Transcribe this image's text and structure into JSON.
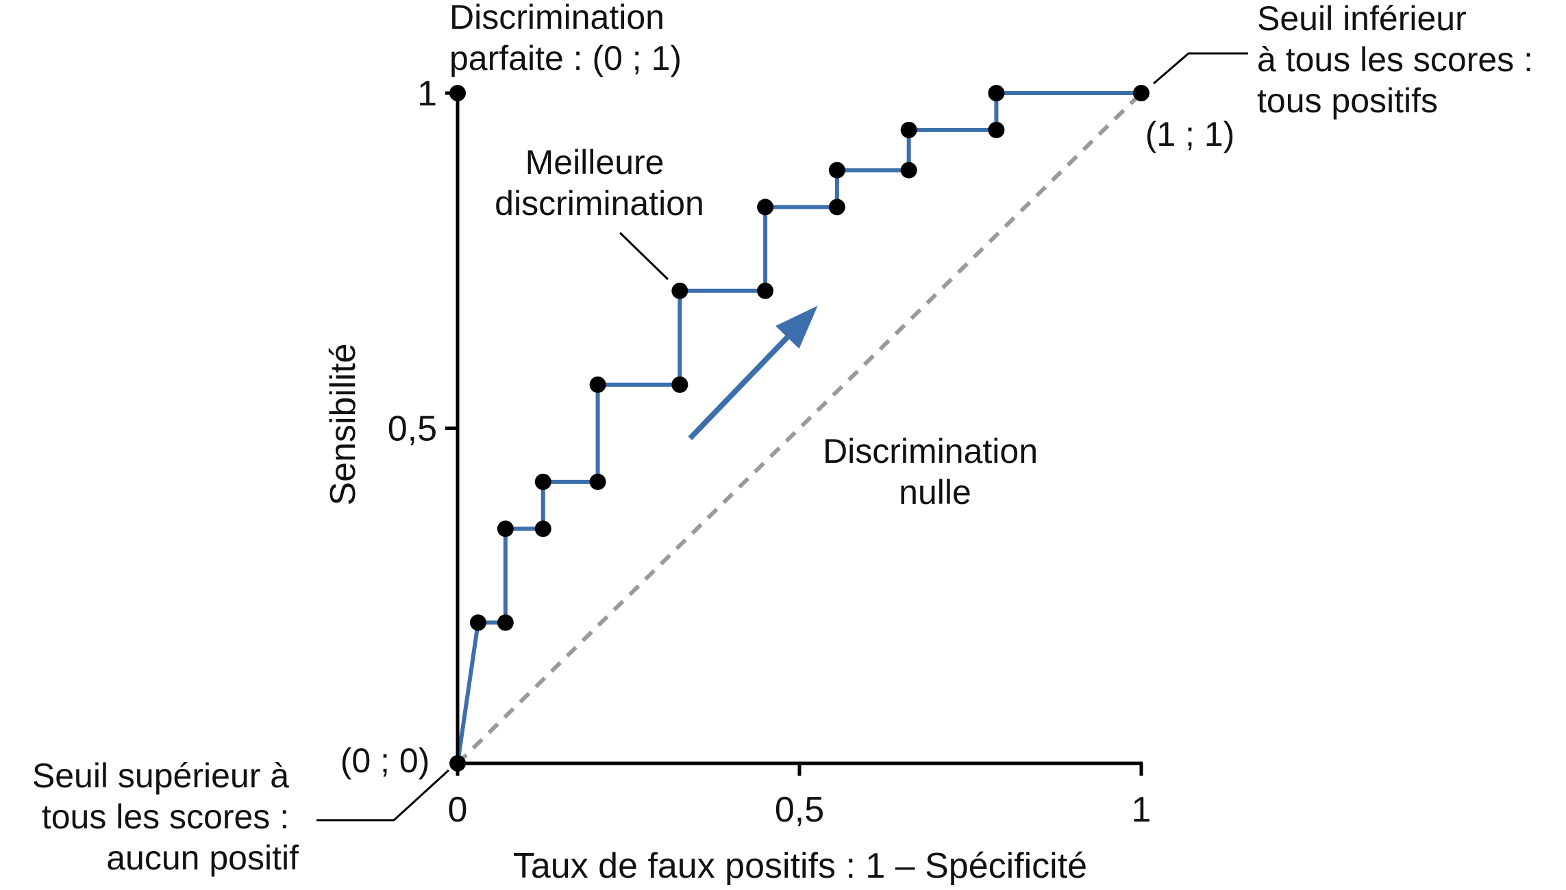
{
  "chart_data": {
    "type": "line",
    "title": "",
    "xlabel": "Taux de faux positifs : 1 – Spécificité",
    "ylabel": "Sensibilité",
    "xlim": [
      0,
      1
    ],
    "ylim": [
      0,
      1
    ],
    "x_ticks": [
      {
        "value": 0,
        "label": "0"
      },
      {
        "value": 0.5,
        "label": "0,5"
      },
      {
        "value": 1,
        "label": "1"
      }
    ],
    "y_ticks": [
      {
        "value": 0,
        "label": ""
      },
      {
        "value": 0.5,
        "label": "0,5"
      },
      {
        "value": 1,
        "label": "1"
      }
    ],
    "grid": false,
    "colors": {
      "roc": "#3d6fad",
      "diagonal": "#9a9a9a",
      "points": "#000000",
      "axes": "#000000"
    },
    "series": [
      {
        "type": "step",
        "points": [
          [
            0,
            0
          ],
          [
            0.03,
            0.21
          ],
          [
            0.07,
            0.21
          ],
          [
            0.07,
            0.35
          ],
          [
            0.125,
            0.35
          ],
          [
            0.125,
            0.42
          ],
          [
            0.205,
            0.42
          ],
          [
            0.205,
            0.565
          ],
          [
            0.325,
            0.565
          ],
          [
            0.325,
            0.705
          ],
          [
            0.45,
            0.705
          ],
          [
            0.45,
            0.83
          ],
          [
            0.555,
            0.83
          ],
          [
            0.555,
            0.885
          ],
          [
            0.66,
            0.885
          ],
          [
            0.66,
            0.945
          ],
          [
            0.788,
            0.945
          ],
          [
            0.788,
            1
          ],
          [
            1,
            1
          ]
        ]
      },
      {
        "type": "reference",
        "style": "dashed",
        "points": [
          [
            0,
            0
          ],
          [
            1,
            1
          ]
        ]
      }
    ],
    "extra_points": [
      [
        0,
        1
      ]
    ],
    "arrow": {
      "from": [
        0.34,
        0.485
      ],
      "to": [
        0.51,
        0.665
      ]
    },
    "annotations": {
      "perfect": [
        "Discrimination",
        "parfaite : (0 ; 1)"
      ],
      "best": [
        "Meilleure",
        "discrimination"
      ],
      "null": [
        "Discrimination",
        "nulle"
      ],
      "top_right": [
        "Seuil inférieur",
        "à tous les scores :",
        "tous positifs"
      ],
      "top_right_coord": "(1 ; 1)",
      "bottom_left": [
        "Seuil supérieur à",
        "tous les scores :",
        "aucun positif"
      ],
      "origin_coord": "(0 ; 0)"
    }
  }
}
